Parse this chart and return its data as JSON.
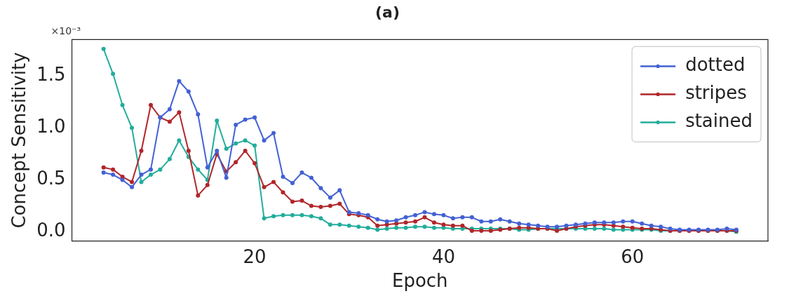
{
  "chart_data": {
    "type": "line",
    "title": "(a)",
    "xlabel": "Epoch",
    "ylabel": "Concept Sensitivity",
    "annotations": [
      "×10⁻³"
    ],
    "x": [
      4,
      5,
      6,
      7,
      8,
      9,
      10,
      11,
      12,
      13,
      14,
      15,
      16,
      17,
      18,
      19,
      20,
      21,
      22,
      23,
      24,
      25,
      26,
      27,
      28,
      29,
      30,
      31,
      32,
      33,
      34,
      35,
      36,
      37,
      38,
      39,
      40,
      41,
      42,
      43,
      44,
      45,
      46,
      47,
      48,
      49,
      50,
      51,
      52,
      53,
      54,
      55,
      56,
      57,
      58,
      59,
      60,
      61,
      62,
      63,
      64,
      65,
      66,
      67,
      68,
      69,
      70,
      71
    ],
    "xlim": [
      0.65,
      74.35
    ],
    "xticks": [
      20,
      40,
      60
    ],
    "ylim": [
      -0.088,
      1.85
    ],
    "yticks": [
      {
        "value": 0,
        "label": "0.0"
      },
      0.5,
      {
        "value": 1,
        "label": "1.0"
      },
      1.5
    ],
    "legend": "top right",
    "marker": "circle",
    "line_style": "solid",
    "grid": false,
    "series": [
      {
        "name": "dotted",
        "color": "#4361d4",
        "values": [
          0.57,
          0.55,
          0.5,
          0.43,
          0.55,
          0.6,
          1.1,
          1.18,
          1.45,
          1.35,
          1.13,
          0.62,
          0.78,
          0.52,
          1.03,
          1.08,
          1.1,
          0.88,
          0.95,
          0.53,
          0.47,
          0.57,
          0.52,
          0.42,
          0.33,
          0.4,
          0.19,
          0.18,
          0.16,
          0.12,
          0.1,
          0.11,
          0.14,
          0.16,
          0.19,
          0.17,
          0.16,
          0.13,
          0.14,
          0.14,
          0.1,
          0.1,
          0.12,
          0.1,
          0.08,
          0.07,
          0.06,
          0.05,
          0.05,
          0.06,
          0.07,
          0.08,
          0.09,
          0.09,
          0.09,
          0.1,
          0.1,
          0.08,
          0.06,
          0.05,
          0.03,
          0.02,
          0.02,
          0.02,
          0.02,
          0.02,
          0.03,
          0.02
        ]
      },
      {
        "name": "stripes",
        "color": "#b0262a",
        "values": [
          0.62,
          0.6,
          0.53,
          0.48,
          0.78,
          1.22,
          1.1,
          1.06,
          1.15,
          0.78,
          0.35,
          0.45,
          0.75,
          0.58,
          0.67,
          0.78,
          0.66,
          0.43,
          0.48,
          0.38,
          0.29,
          0.3,
          0.25,
          0.24,
          0.25,
          0.27,
          0.17,
          0.16,
          0.14,
          0.06,
          0.07,
          0.08,
          0.09,
          0.1,
          0.14,
          0.09,
          0.07,
          0.06,
          0.06,
          0.01,
          0.01,
          0.01,
          0.02,
          0.03,
          0.04,
          0.04,
          0.03,
          0.03,
          0.01,
          0.03,
          0.05,
          0.06,
          0.07,
          0.07,
          0.06,
          0.05,
          0.04,
          0.03,
          0.03,
          0.02,
          0.01,
          0.01,
          0.01,
          0.01,
          0.01,
          0.01,
          0.01,
          0.01
        ]
      },
      {
        "name": "stained",
        "color": "#22ad9c",
        "values": [
          1.76,
          1.52,
          1.22,
          1.0,
          0.48,
          0.55,
          0.6,
          0.7,
          0.88,
          0.72,
          0.6,
          0.5,
          1.07,
          0.8,
          0.85,
          0.88,
          0.83,
          0.13,
          0.15,
          0.16,
          0.16,
          0.16,
          0.15,
          0.13,
          0.07,
          0.07,
          0.06,
          0.05,
          0.04,
          0.02,
          0.03,
          0.04,
          0.04,
          0.05,
          0.05,
          0.04,
          0.04,
          0.03,
          0.03,
          0.03,
          0.03,
          0.03,
          0.03,
          0.03,
          0.02,
          0.02,
          0.03,
          0.03,
          0.03,
          0.03,
          0.03,
          0.03,
          0.03,
          0.03,
          0.02,
          0.02,
          0.02,
          0.02,
          0.02,
          0.01,
          0.01,
          0.01,
          0.01,
          0.01,
          0.01,
          0.01,
          0.01,
          0.0
        ]
      }
    ]
  }
}
